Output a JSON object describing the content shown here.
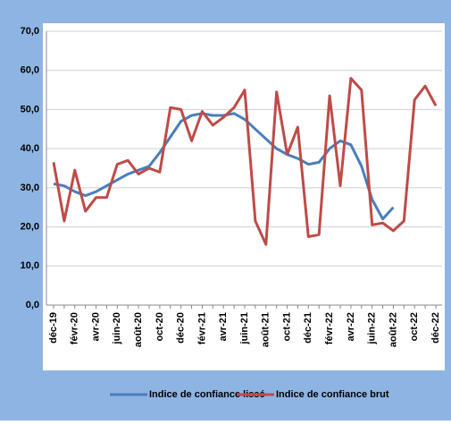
{
  "chart_data": {
    "type": "line",
    "categories": [
      "déc-19",
      null,
      "févr-20",
      null,
      "avr-20",
      null,
      "juin-20",
      null,
      "août-20",
      null,
      "oct-20",
      null,
      "déc-20",
      null,
      "févr-21",
      null,
      "avr-21",
      null,
      "juin-21",
      null,
      "août-21",
      null,
      "oct-21",
      null,
      "déc-21",
      null,
      "févr-22",
      null,
      "avr-22",
      null,
      "juin-22",
      null,
      "août-22",
      null,
      "oct-22",
      null,
      "déc-22"
    ],
    "series": [
      {
        "name": "Indice de confiance lissé",
        "color": "#4a7ebb",
        "values": [
          31,
          30.5,
          29,
          28,
          29,
          30.5,
          32,
          33.5,
          34.5,
          35.5,
          39,
          43,
          47,
          48.5,
          49,
          48.5,
          48.5,
          49,
          47.5,
          45,
          42.5,
          40,
          38.5,
          37.5,
          36,
          36.5,
          40,
          42,
          41,
          35.5,
          27,
          22,
          25,
          null,
          null,
          null,
          null
        ]
      },
      {
        "name": "Indice de confiance brut",
        "color": "#be4b48",
        "values": [
          36.5,
          21.5,
          34.5,
          24,
          27.5,
          27.5,
          36,
          37,
          33.5,
          35,
          34,
          50.5,
          50,
          42,
          49.5,
          46,
          48,
          50.5,
          55,
          21.5,
          15.5,
          54.5,
          38.5,
          45.5,
          17.5,
          18,
          53.5,
          30.5,
          58,
          55,
          20.5,
          21,
          19,
          21.5,
          52.5,
          56,
          51
        ]
      }
    ],
    "ylim": [
      0,
      70
    ],
    "yticks": [
      {
        "value": 0,
        "label": "0,0"
      },
      {
        "value": 10,
        "label": "10,0"
      },
      {
        "value": 20,
        "label": "20,0"
      },
      {
        "value": 30,
        "label": "30,0"
      },
      {
        "value": 40,
        "label": "40,0"
      },
      {
        "value": 50,
        "label": "50,0"
      },
      {
        "value": 60,
        "label": "60,0"
      },
      {
        "value": 70,
        "label": "70,0"
      }
    ],
    "grid": true,
    "legend": "bottom"
  }
}
